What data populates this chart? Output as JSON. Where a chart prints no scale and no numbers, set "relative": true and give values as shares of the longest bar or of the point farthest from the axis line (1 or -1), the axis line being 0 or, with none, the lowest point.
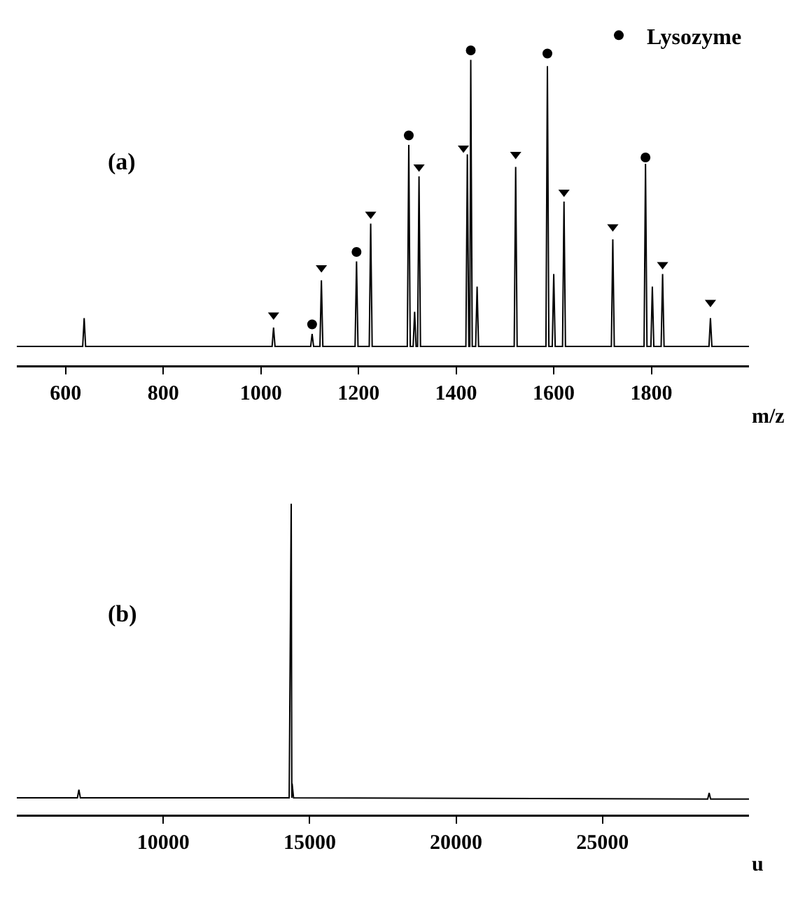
{
  "chart_data": [
    {
      "type": "line",
      "relative": true,
      "xlabel": "m/z",
      "annotations": [
        "(a)"
      ],
      "xlim": [
        500,
        2000
      ],
      "xticks": [
        600,
        800,
        1000,
        1200,
        1400,
        1600,
        1800
      ],
      "legend": "top right",
      "grid": false,
      "series": [
        {
          "color": "#000000",
          "x": [
            500,
            635,
            638,
            641,
            1023,
            1026,
            1029,
            1102,
            1105,
            1108,
            1121,
            1124,
            1127,
            1193,
            1196,
            1199,
            1222,
            1225,
            1228,
            1300,
            1303,
            1306,
            1312,
            1315,
            1318,
            1321,
            1324,
            1327,
            1420,
            1423,
            1426,
            1428,
            1430,
            1433,
            1440,
            1443,
            1446,
            1519,
            1522,
            1525,
            1584,
            1587,
            1590,
            1597,
            1600,
            1603,
            1618,
            1621,
            1624,
            1718,
            1721,
            1724,
            1785,
            1788,
            1791,
            1799,
            1802,
            1805,
            1820,
            1823,
            1826,
            1918,
            1921,
            1924,
            2000
          ],
          "values": [
            0.06,
            0.06,
            0.15,
            0.06,
            0.06,
            0.12,
            0.06,
            0.06,
            0.1,
            0.06,
            0.06,
            0.27,
            0.06,
            0.06,
            0.33,
            0.06,
            0.06,
            0.45,
            0.06,
            0.06,
            0.7,
            0.06,
            0.06,
            0.17,
            0.06,
            0.06,
            0.6,
            0.06,
            0.06,
            0.67,
            0.06,
            0.06,
            0.97,
            0.06,
            0.06,
            0.25,
            0.06,
            0.06,
            0.63,
            0.06,
            0.06,
            0.95,
            0.06,
            0.06,
            0.29,
            0.06,
            0.06,
            0.52,
            0.06,
            0.06,
            0.4,
            0.06,
            0.06,
            0.64,
            0.06,
            0.06,
            0.25,
            0.06,
            0.06,
            0.29,
            0.06,
            0.06,
            0.15,
            0.06,
            0.06
          ]
        },
        {
          "type": "scatter",
          "name": "Lysozyme",
          "marker": "circle",
          "color": "#000000",
          "x": [
            1105,
            1196,
            1303,
            1430,
            1587,
            1788
          ],
          "values": [
            0.13,
            0.36,
            0.73,
            1.0,
            0.99,
            0.66
          ]
        },
        {
          "type": "scatter",
          "marker": "triangle",
          "color": "#000000",
          "x": [
            1026,
            1124,
            1225,
            1324,
            1415,
            1522,
            1621,
            1721,
            1823,
            1921
          ],
          "values": [
            0.16,
            0.31,
            0.48,
            0.63,
            0.69,
            0.67,
            0.55,
            0.44,
            0.32,
            0.2
          ]
        }
      ]
    },
    {
      "type": "line",
      "relative": true,
      "xlabel": "u",
      "annotations": [
        "(b)"
      ],
      "xlim": [
        5000,
        30000
      ],
      "xticks": [
        10000,
        15000,
        20000,
        25000
      ],
      "grid": false,
      "series": [
        {
          "color": "#000000",
          "x": [
            5000,
            7070,
            7120,
            7170,
            14300,
            14370,
            14390,
            14400,
            14450,
            28590,
            28640,
            28690,
            30000
          ],
          "values": [
            0.054,
            0.054,
            0.08,
            0.054,
            0.054,
            1.0,
            0.054,
            0.1,
            0.054,
            0.05,
            0.07,
            0.05,
            0.05
          ]
        }
      ]
    }
  ]
}
